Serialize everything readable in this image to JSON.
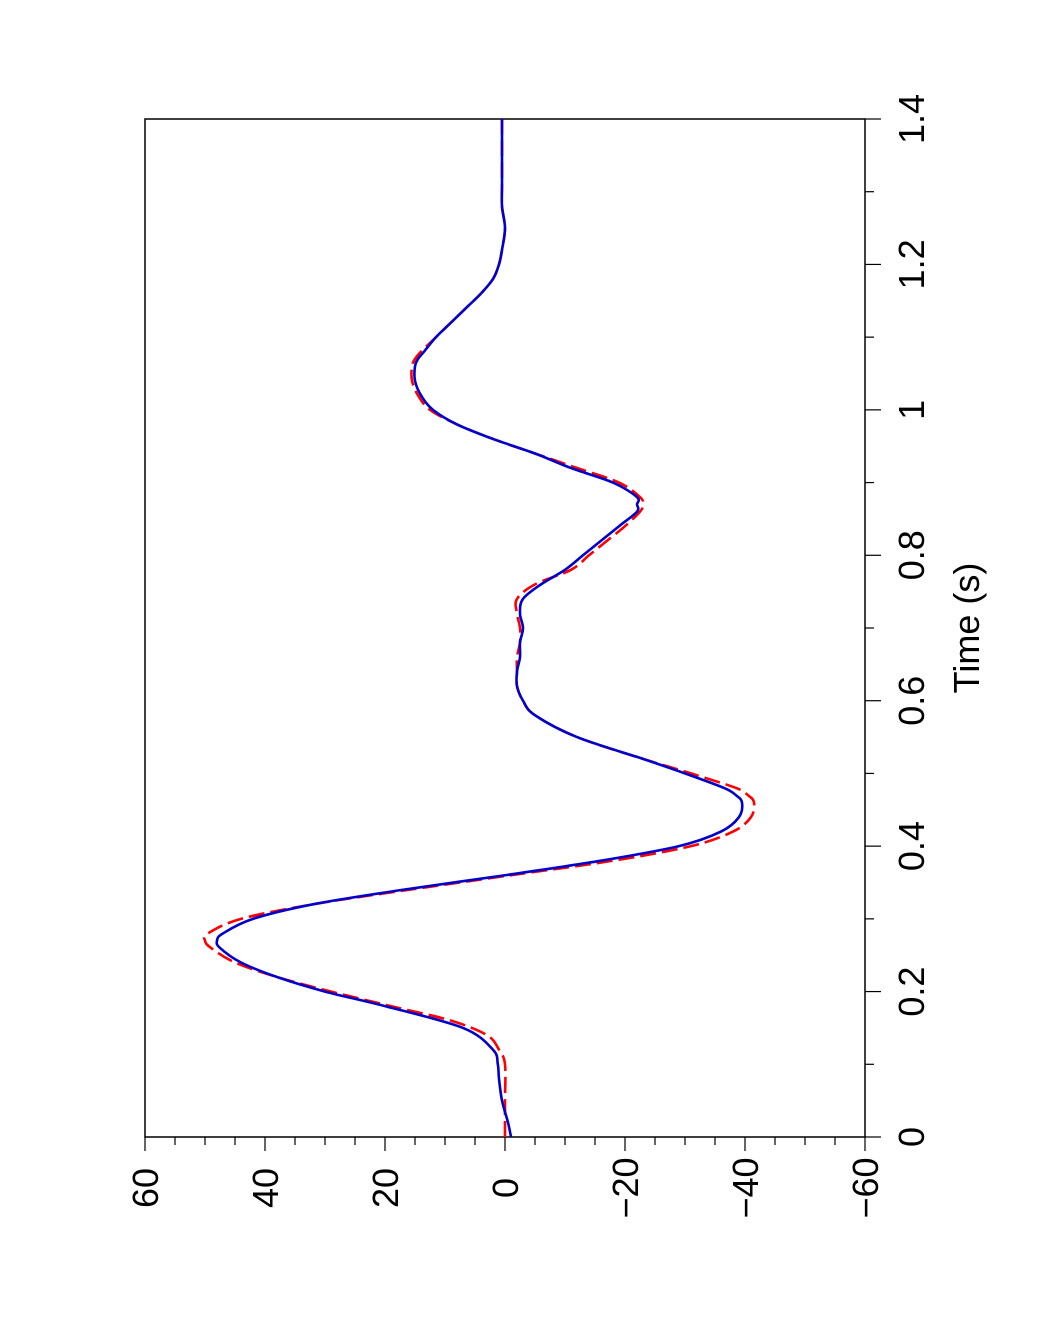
{
  "chart_data": {
    "type": "line",
    "title": "",
    "xlabel": "Time (s)",
    "ylabel": "",
    "xlim": [
      0,
      1.4
    ],
    "ylim": [
      -60,
      60
    ],
    "grid": false,
    "legend": "none",
    "orientation": "rotated-90-ccw",
    "x_ticks": [
      0,
      0.2,
      0.4,
      0.6,
      0.8,
      1,
      1.2,
      1.4
    ],
    "x_tick_labels": [
      "0",
      "0.2",
      "0.4",
      "0.6",
      "0.8",
      "1",
      "1.2",
      "1.4"
    ],
    "y_ticks": [
      60,
      40,
      20,
      0,
      -20,
      -40,
      -60
    ],
    "y_tick_labels": [
      "60",
      "40",
      "20",
      "0",
      "−20",
      "−40",
      "−60"
    ],
    "series": [
      {
        "color": "#0000cc",
        "style": "solid",
        "x": [
          0,
          0.02,
          0.05,
          0.08,
          0.1,
          0.12,
          0.15,
          0.18,
          0.2,
          0.22,
          0.24,
          0.26,
          0.27,
          0.28,
          0.3,
          0.32,
          0.34,
          0.36,
          0.38,
          0.4,
          0.42,
          0.44,
          0.46,
          0.47,
          0.48,
          0.5,
          0.52,
          0.55,
          0.58,
          0.6,
          0.62,
          0.64,
          0.66,
          0.68,
          0.7,
          0.72,
          0.74,
          0.76,
          0.78,
          0.8,
          0.82,
          0.84,
          0.86,
          0.87,
          0.88,
          0.9,
          0.92,
          0.94,
          0.96,
          0.98,
          1.0,
          1.02,
          1.04,
          1.06,
          1.07,
          1.08,
          1.1,
          1.12,
          1.14,
          1.16,
          1.18,
          1.2,
          1.22,
          1.25,
          1.28,
          1.31,
          1.34,
          1.37,
          1.4
        ],
        "y": [
          -1,
          -0.5,
          0.5,
          1,
          1.2,
          2,
          7,
          20,
          30,
          38,
          44,
          47.5,
          48,
          47,
          42,
          32,
          17,
          0,
          -16,
          -29,
          -36,
          -39,
          -39.5,
          -38.5,
          -36.5,
          -30,
          -23,
          -12,
          -5,
          -3,
          -2,
          -2,
          -2.5,
          -2.5,
          -3,
          -2.5,
          -3,
          -6,
          -10,
          -13,
          -16,
          -19,
          -22,
          -22,
          -22,
          -18,
          -11,
          -5,
          2,
          8,
          12,
          14,
          15,
          15,
          14.5,
          13.5,
          11.5,
          9,
          6.5,
          4,
          2,
          1,
          0.5,
          0,
          0.5,
          0.5,
          0.5,
          0.5,
          0.5
        ]
      },
      {
        "color": "#ff0000",
        "style": "dashed",
        "x": [
          0,
          0.05,
          0.1,
          0.12,
          0.14,
          0.16,
          0.18,
          0.2,
          0.22,
          0.24,
          0.26,
          0.27,
          0.28,
          0.3,
          0.32,
          0.34,
          0.36,
          0.38,
          0.4,
          0.42,
          0.44,
          0.46,
          0.47,
          0.48,
          0.5,
          0.52,
          0.55,
          0.58,
          0.6,
          0.62,
          0.64,
          0.66,
          0.68,
          0.7,
          0.72,
          0.74,
          0.76,
          0.78,
          0.8,
          0.82,
          0.84,
          0.86,
          0.87,
          0.88,
          0.9,
          0.92,
          0.94,
          0.96,
          0.98,
          1.0,
          1.02,
          1.04,
          1.06,
          1.07,
          1.08,
          1.1,
          1.12,
          1.14,
          1.16,
          1.18,
          1.2,
          1.22,
          1.25,
          1.28,
          1.31,
          1.34,
          1.37,
          1.4
        ],
        "y": [
          0,
          0,
          0,
          1,
          3,
          9,
          19,
          29,
          38,
          45,
          49,
          50,
          49.5,
          44,
          32,
          16,
          -1,
          -18,
          -31,
          -38,
          -41,
          -41.5,
          -40.5,
          -38.5,
          -31,
          -23,
          -12,
          -5,
          -3,
          -2,
          -2,
          -2,
          -2.5,
          -2.5,
          -2,
          -2,
          -5,
          -11,
          -14,
          -17,
          -20,
          -22.5,
          -23,
          -22.5,
          -19,
          -12,
          -5,
          2,
          8,
          12.5,
          14.5,
          15.5,
          15.5,
          15,
          14,
          11.5,
          9,
          6.5,
          4,
          2,
          1,
          0.5,
          0,
          0.5,
          0.5,
          0.5,
          0.5,
          0.5
        ]
      }
    ]
  }
}
